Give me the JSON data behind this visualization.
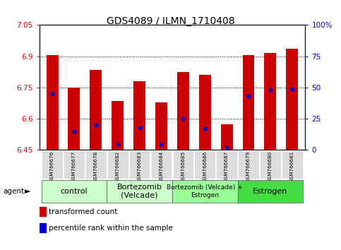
{
  "title": "GDS4089 / ILMN_1710408",
  "samples": [
    "GSM766676",
    "GSM766677",
    "GSM766678",
    "GSM766682",
    "GSM766683",
    "GSM766684",
    "GSM766685",
    "GSM766686",
    "GSM766687",
    "GSM766679",
    "GSM766680",
    "GSM766681"
  ],
  "transformed_count": [
    6.905,
    6.75,
    6.835,
    6.685,
    6.78,
    6.68,
    6.825,
    6.81,
    6.575,
    6.905,
    6.915,
    6.935
  ],
  "percentile_rank": [
    45,
    15,
    20,
    5,
    18,
    5,
    25,
    17,
    2,
    43,
    48,
    49
  ],
  "groups": [
    {
      "label": "control",
      "start": 0,
      "end": 3,
      "color": "#ccffcc",
      "fontsize": 8
    },
    {
      "label": "Bortezomib\n(Velcade)",
      "start": 3,
      "end": 6,
      "color": "#ccffcc",
      "fontsize": 8
    },
    {
      "label": "Bortezomib (Velcade) +\nEstrogen",
      "start": 6,
      "end": 9,
      "color": "#99ff99",
      "fontsize": 6.5
    },
    {
      "label": "Estrogen",
      "start": 9,
      "end": 12,
      "color": "#44dd44",
      "fontsize": 8
    }
  ],
  "ylim_left": [
    6.45,
    7.05
  ],
  "ylim_right": [
    0,
    100
  ],
  "yticks_left": [
    6.45,
    6.6,
    6.75,
    6.9,
    7.05
  ],
  "yticks_right": [
    0,
    25,
    50,
    75,
    100
  ],
  "bar_color": "#cc0000",
  "dot_color": "#0000cc",
  "bar_width": 0.55,
  "grid_lines": [
    6.6,
    6.75,
    6.9
  ]
}
